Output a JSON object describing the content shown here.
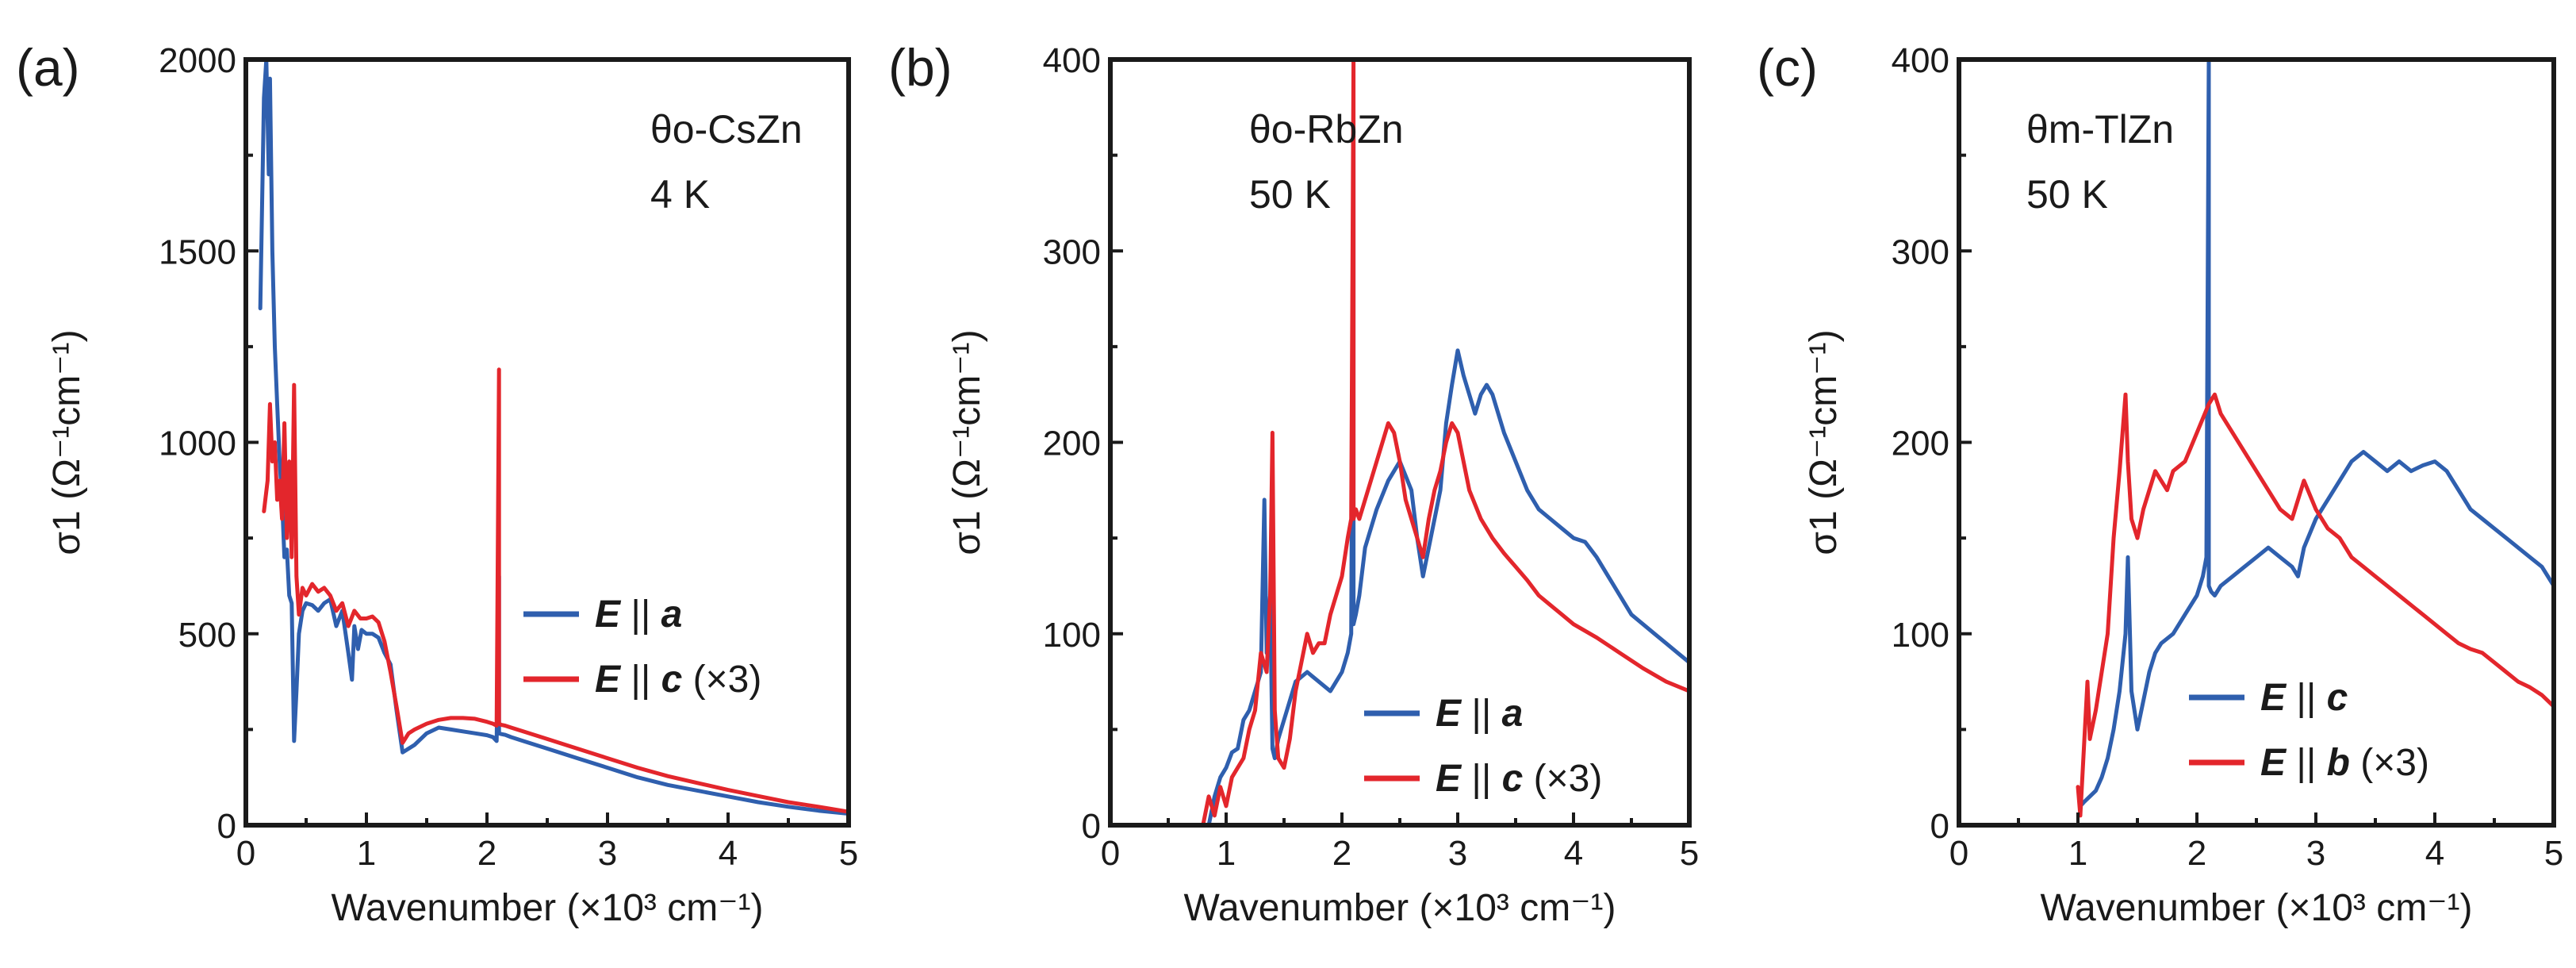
{
  "chart_data": [
    {
      "type": "line",
      "panel_label": "(a)",
      "annotation_lines": [
        "θo-CsZn",
        "4 K"
      ],
      "xlabel": "Wavenumber (×10³ cm⁻¹)",
      "ylabel": "σ1 (Ω⁻¹cm⁻¹)",
      "xlim": [
        0,
        5
      ],
      "ylim": [
        0,
        2000
      ],
      "xticks": [
        "0",
        "1",
        "2",
        "3",
        "4",
        "5"
      ],
      "yticks": [
        "0",
        "500",
        "1000",
        "1500",
        "2000"
      ],
      "legend_position": "center-right",
      "series": [
        {
          "name": "E || a",
          "legend_field": "E",
          "legend_axis": "a",
          "legend_suffix": "",
          "color": "#2f5fae",
          "x": [
            0.12,
            0.15,
            0.17,
            0.19,
            0.2,
            0.22,
            0.24,
            0.26,
            0.28,
            0.3,
            0.32,
            0.34,
            0.36,
            0.38,
            0.4,
            0.42,
            0.44,
            0.47,
            0.5,
            0.55,
            0.6,
            0.65,
            0.7,
            0.75,
            0.8,
            0.85,
            0.88,
            0.9,
            0.93,
            0.96,
            1.0,
            1.05,
            1.1,
            1.15,
            1.2,
            1.25,
            1.3,
            1.35,
            1.4,
            1.5,
            1.6,
            1.7,
            1.8,
            1.9,
            2.0,
            2.05,
            2.08,
            2.1,
            2.1,
            2.12,
            2.15,
            2.2,
            2.3,
            2.5,
            2.75,
            3.0,
            3.25,
            3.5,
            3.75,
            4.0,
            4.25,
            4.5,
            4.75,
            5.0
          ],
          "y": [
            1350,
            1900,
            2000,
            1700,
            1950,
            1500,
            1250,
            1100,
            950,
            850,
            700,
            720,
            600,
            580,
            220,
            350,
            500,
            560,
            580,
            575,
            560,
            580,
            590,
            520,
            560,
            450,
            380,
            520,
            460,
            510,
            500,
            500,
            490,
            450,
            420,
            300,
            190,
            200,
            210,
            240,
            255,
            250,
            245,
            240,
            235,
            230,
            220,
            650,
            240,
            238,
            236,
            230,
            220,
            200,
            175,
            150,
            125,
            105,
            90,
            75,
            60,
            48,
            38,
            30
          ]
        },
        {
          "name": "E || c (×3)",
          "legend_field": "E",
          "legend_axis": "c",
          "legend_suffix": " (×3)",
          "color": "#e3262c",
          "x": [
            0.15,
            0.18,
            0.2,
            0.22,
            0.24,
            0.26,
            0.28,
            0.3,
            0.32,
            0.34,
            0.36,
            0.38,
            0.4,
            0.42,
            0.44,
            0.47,
            0.5,
            0.55,
            0.6,
            0.65,
            0.7,
            0.75,
            0.8,
            0.85,
            0.9,
            0.95,
            1.0,
            1.05,
            1.1,
            1.15,
            1.2,
            1.25,
            1.3,
            1.35,
            1.4,
            1.5,
            1.6,
            1.7,
            1.8,
            1.9,
            2.0,
            2.05,
            2.08,
            2.1,
            2.1,
            2.12,
            2.15,
            2.2,
            2.3,
            2.5,
            2.75,
            3.0,
            3.25,
            3.5,
            3.75,
            4.0,
            4.25,
            4.5,
            4.75,
            5.0
          ],
          "y": [
            820,
            900,
            1100,
            950,
            1000,
            850,
            900,
            800,
            1050,
            750,
            950,
            700,
            1150,
            650,
            550,
            620,
            600,
            630,
            610,
            620,
            600,
            560,
            580,
            520,
            560,
            540,
            540,
            545,
            530,
            480,
            400,
            310,
            215,
            240,
            250,
            265,
            275,
            280,
            280,
            278,
            270,
            265,
            260,
            1190,
            265,
            262,
            260,
            255,
            245,
            225,
            200,
            175,
            150,
            128,
            110,
            92,
            76,
            60,
            48,
            35
          ]
        }
      ]
    },
    {
      "type": "line",
      "panel_label": "(b)",
      "annotation_lines": [
        "θo-RbZn",
        "50 K"
      ],
      "xlabel": "Wavenumber (×10³ cm⁻¹)",
      "ylabel": "σ1 (Ω⁻¹cm⁻¹)",
      "xlim": [
        0,
        5
      ],
      "ylim": [
        0,
        400
      ],
      "xticks": [
        "0",
        "1",
        "2",
        "3",
        "4",
        "5"
      ],
      "yticks": [
        "0",
        "100",
        "200",
        "300",
        "400"
      ],
      "legend_position": "bottom-right",
      "series": [
        {
          "name": "E || a",
          "legend_field": "E",
          "legend_axis": "a",
          "legend_suffix": "",
          "color": "#2f5fae",
          "x": [
            0.85,
            0.9,
            0.95,
            1.0,
            1.05,
            1.1,
            1.15,
            1.2,
            1.25,
            1.3,
            1.33,
            1.35,
            1.38,
            1.4,
            1.42,
            1.45,
            1.5,
            1.6,
            1.7,
            1.8,
            1.9,
            1.95,
            2.0,
            2.05,
            2.08,
            2.1,
            2.1,
            2.12,
            2.15,
            2.2,
            2.3,
            2.4,
            2.5,
            2.6,
            2.65,
            2.7,
            2.75,
            2.8,
            2.85,
            2.9,
            2.95,
            3.0,
            3.05,
            3.1,
            3.15,
            3.2,
            3.25,
            3.3,
            3.4,
            3.5,
            3.6,
            3.7,
            3.8,
            3.9,
            4.0,
            4.1,
            4.2,
            4.3,
            4.4,
            4.5,
            4.6,
            4.7,
            4.8,
            4.9,
            5.0
          ],
          "y": [
            0,
            15,
            25,
            30,
            38,
            40,
            55,
            60,
            70,
            80,
            170,
            90,
            120,
            40,
            35,
            45,
            55,
            75,
            80,
            75,
            70,
            75,
            80,
            90,
            100,
            360,
            105,
            110,
            120,
            145,
            165,
            180,
            190,
            175,
            150,
            130,
            145,
            160,
            175,
            210,
            230,
            248,
            235,
            225,
            215,
            225,
            230,
            225,
            205,
            190,
            175,
            165,
            160,
            155,
            150,
            148,
            140,
            130,
            120,
            110,
            105,
            100,
            95,
            90,
            85
          ]
        },
        {
          "name": "E || c (×3)",
          "legend_field": "E",
          "legend_axis": "c",
          "legend_suffix": " (×3)",
          "color": "#e3262c",
          "x": [
            0.8,
            0.85,
            0.9,
            0.95,
            1.0,
            1.05,
            1.1,
            1.15,
            1.2,
            1.25,
            1.3,
            1.35,
            1.38,
            1.4,
            1.42,
            1.45,
            1.5,
            1.55,
            1.6,
            1.65,
            1.7,
            1.75,
            1.8,
            1.85,
            1.9,
            1.95,
            2.0,
            2.05,
            2.08,
            2.1,
            2.1,
            2.12,
            2.15,
            2.2,
            2.3,
            2.4,
            2.45,
            2.5,
            2.55,
            2.6,
            2.65,
            2.7,
            2.75,
            2.8,
            2.85,
            2.9,
            2.95,
            3.0,
            3.05,
            3.1,
            3.2,
            3.3,
            3.4,
            3.5,
            3.6,
            3.7,
            3.8,
            3.9,
            4.0,
            4.2,
            4.4,
            4.6,
            4.8,
            5.0
          ],
          "y": [
            0,
            15,
            5,
            20,
            10,
            25,
            30,
            35,
            50,
            60,
            90,
            80,
            120,
            205,
            60,
            35,
            30,
            45,
            70,
            85,
            100,
            90,
            95,
            95,
            110,
            120,
            130,
            150,
            160,
            400,
            160,
            165,
            160,
            170,
            190,
            210,
            205,
            190,
            170,
            160,
            150,
            140,
            160,
            175,
            185,
            200,
            210,
            205,
            190,
            175,
            160,
            150,
            142,
            135,
            128,
            120,
            115,
            110,
            105,
            98,
            90,
            82,
            75,
            70
          ]
        }
      ]
    },
    {
      "type": "line",
      "panel_label": "(c)",
      "annotation_lines": [
        "θm-TlZn",
        "50 K"
      ],
      "xlabel": "Wavenumber (×10³ cm⁻¹)",
      "ylabel": "σ1 (Ω⁻¹cm⁻¹)",
      "xlim": [
        0,
        5
      ],
      "ylim": [
        0,
        400
      ],
      "xticks": [
        "0",
        "1",
        "2",
        "3",
        "4",
        "5"
      ],
      "yticks": [
        "0",
        "100",
        "200",
        "300",
        "400"
      ],
      "legend_position": "bottom-right",
      "series": [
        {
          "name": "E || c",
          "legend_field": "E",
          "legend_axis": "c",
          "legend_suffix": "",
          "color": "#2f5fae",
          "x": [
            1.02,
            1.05,
            1.1,
            1.15,
            1.2,
            1.25,
            1.3,
            1.35,
            1.4,
            1.42,
            1.45,
            1.5,
            1.55,
            1.6,
            1.65,
            1.7,
            1.8,
            1.9,
            2.0,
            2.05,
            2.08,
            2.1,
            2.1,
            2.12,
            2.15,
            2.2,
            2.3,
            2.4,
            2.5,
            2.6,
            2.7,
            2.8,
            2.85,
            2.9,
            3.0,
            3.1,
            3.2,
            3.3,
            3.4,
            3.5,
            3.6,
            3.7,
            3.8,
            3.9,
            4.0,
            4.1,
            4.2,
            4.3,
            4.4,
            4.5,
            4.6,
            4.7,
            4.8,
            4.9,
            5.0
          ],
          "y": [
            10,
            12,
            15,
            18,
            25,
            35,
            50,
            70,
            100,
            140,
            70,
            50,
            65,
            80,
            90,
            95,
            100,
            110,
            120,
            130,
            140,
            400,
            125,
            122,
            120,
            125,
            130,
            135,
            140,
            145,
            140,
            135,
            130,
            145,
            160,
            170,
            180,
            190,
            195,
            190,
            185,
            190,
            185,
            188,
            190,
            185,
            175,
            165,
            160,
            155,
            150,
            145,
            140,
            135,
            125
          ]
        },
        {
          "name": "E || b (×3)",
          "legend_field": "E",
          "legend_axis": "b",
          "legend_suffix": " (×3)",
          "color": "#e3262c",
          "x": [
            1.0,
            1.02,
            1.05,
            1.08,
            1.1,
            1.15,
            1.2,
            1.25,
            1.3,
            1.35,
            1.4,
            1.42,
            1.45,
            1.5,
            1.55,
            1.6,
            1.65,
            1.7,
            1.75,
            1.8,
            1.9,
            2.0,
            2.1,
            2.15,
            2.2,
            2.3,
            2.4,
            2.5,
            2.6,
            2.7,
            2.8,
            2.85,
            2.9,
            3.0,
            3.1,
            3.2,
            3.3,
            3.4,
            3.5,
            3.6,
            3.7,
            3.8,
            3.9,
            4.0,
            4.1,
            4.2,
            4.3,
            4.4,
            4.5,
            4.6,
            4.7,
            4.8,
            4.9,
            5.0
          ],
          "y": [
            20,
            5,
            40,
            75,
            45,
            60,
            80,
            100,
            150,
            185,
            225,
            190,
            160,
            150,
            165,
            175,
            185,
            180,
            175,
            185,
            190,
            205,
            220,
            225,
            215,
            205,
            195,
            185,
            175,
            165,
            160,
            170,
            180,
            165,
            155,
            150,
            140,
            135,
            130,
            125,
            120,
            115,
            110,
            105,
            100,
            95,
            92,
            90,
            85,
            80,
            75,
            72,
            68,
            62
          ]
        }
      ]
    }
  ]
}
